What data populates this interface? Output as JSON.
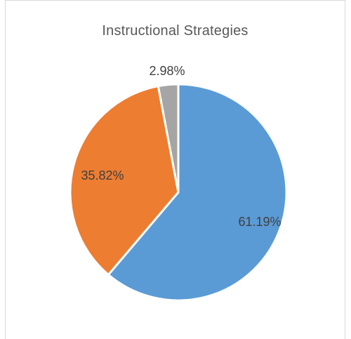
{
  "chart_data": {
    "type": "pie",
    "title": "Instructional Strategies",
    "legend": "none",
    "slices": [
      {
        "value": 61.19,
        "label": "61.19%",
        "color": "#5b9bd5"
      },
      {
        "value": 35.82,
        "label": "35.82%",
        "color": "#ed7d31"
      },
      {
        "value": 2.98,
        "label": "2.98%",
        "color": "#a5a5a5"
      }
    ]
  }
}
